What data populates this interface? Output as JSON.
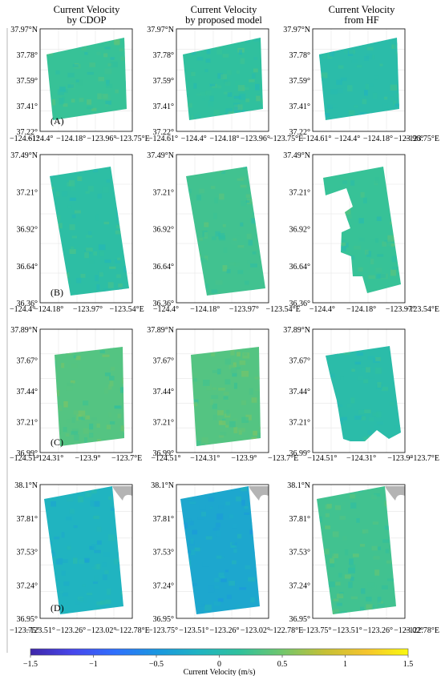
{
  "column_titles": [
    {
      "line1": "Current Velocity",
      "line2": "by CDOP"
    },
    {
      "line1": "Current Velocity",
      "line2": "by proposed model"
    },
    {
      "line1": "Current Velocity",
      "line2": "from HF"
    }
  ],
  "chart_data": [
    {
      "type": "heatmap",
      "row_label": "(A)",
      "lat_ticks": [
        "37.97°N",
        "37.78°",
        "37.59°",
        "37.41°",
        "37.22°"
      ],
      "lon_ticks": [
        "−124.61°",
        "−124.4°",
        "−124.18°",
        "−123.96°",
        "−123.75°E"
      ],
      "panels": [
        {
          "source": "by CDOP",
          "mean_velocity": 0.2,
          "coverage": "full"
        },
        {
          "source": "by proposed model",
          "mean_velocity": 0.15,
          "coverage": "full"
        },
        {
          "source": "from HF",
          "mean_velocity": 0.05,
          "coverage": "full"
        }
      ]
    },
    {
      "type": "heatmap",
      "row_label": "(B)",
      "lat_ticks": [
        "37.49°N",
        "37.21°",
        "36.92°",
        "36.64°",
        "36.36°"
      ],
      "lon_ticks": [
        "−124.4°",
        "−124.18°",
        "−123.97°",
        "−123.54°E"
      ],
      "panels": [
        {
          "source": "by CDOP",
          "mean_velocity": 0.1,
          "coverage": "full"
        },
        {
          "source": "by proposed model",
          "mean_velocity": 0.25,
          "coverage": "full"
        },
        {
          "source": "from HF",
          "mean_velocity": 0.2,
          "coverage": "partial"
        }
      ]
    },
    {
      "type": "heatmap",
      "row_label": "(C)",
      "lat_ticks": [
        "37.89°N",
        "37.67°",
        "37.44°",
        "37.21°",
        "36.99°"
      ],
      "lon_ticks": [
        "−124.51°",
        "−124.31°",
        "−123.9°",
        "−123.7°E"
      ],
      "panels": [
        {
          "source": "by CDOP",
          "mean_velocity": 0.35,
          "coverage": "full"
        },
        {
          "source": "by proposed model",
          "mean_velocity": 0.35,
          "coverage": "full"
        },
        {
          "source": "from HF",
          "mean_velocity": 0.05,
          "coverage": "partial"
        }
      ]
    },
    {
      "type": "heatmap",
      "row_label": "(D)",
      "lat_ticks": [
        "38.1°N",
        "37.81°",
        "37.53°",
        "37.24°",
        "36.95°"
      ],
      "lon_ticks": [
        "−123.75°",
        "−123.51°",
        "−123.26°",
        "−123.02°",
        "−122.78°E"
      ],
      "panels": [
        {
          "source": "by CDOP",
          "mean_velocity": -0.15,
          "coverage": "full"
        },
        {
          "source": "by proposed model",
          "mean_velocity": -0.3,
          "coverage": "full"
        },
        {
          "source": "from HF",
          "mean_velocity": 0.25,
          "coverage": "full"
        }
      ]
    }
  ],
  "colorbar": {
    "label": "Current Velocity (m/s)",
    "min": -1.5,
    "max": 1.5,
    "ticks": [
      "−1.5",
      "−1",
      "−0.5",
      "0",
      "0.5",
      "1",
      "1.5"
    ],
    "tick_values": [
      -1.5,
      -1,
      -0.5,
      0,
      0.5,
      1,
      1.5
    ],
    "colormap": "parula",
    "stops": [
      "#3e26a8",
      "#4746eb",
      "#2f6ffd",
      "#1a96e0",
      "#1fb3c2",
      "#31c19c",
      "#71c66c",
      "#c4c036",
      "#f5c42d",
      "#f9f80f"
    ]
  },
  "colors": {
    "land": "#b4b4b4",
    "grid": "#e6e6e6",
    "frame": "#000000"
  }
}
